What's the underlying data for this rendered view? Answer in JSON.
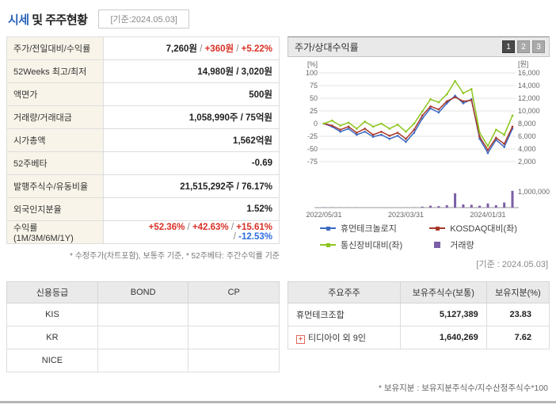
{
  "header": {
    "title_highlight": "시세",
    "title_rest": " 및 주주현황",
    "reference_date": "[기준:2024.05.03]"
  },
  "misc": {
    "sep": " / "
  },
  "quote_table": {
    "rows": [
      {
        "label": "주가/전일대비/수익률",
        "price": "7,260원",
        "change": "+360원",
        "rate": "+5.22%"
      },
      {
        "label": "52Weeks 최고/최저",
        "value": "14,980원 / 3,020원"
      },
      {
        "label": "액면가",
        "value": "500원"
      },
      {
        "label": "거래량/거래대금",
        "value": "1,058,990주 / 75억원"
      },
      {
        "label": "시가총액",
        "value": "1,562억원"
      },
      {
        "label": "52주베타",
        "value": "-0.69"
      },
      {
        "label": "발행주식수/유동비율",
        "value": "21,515,292주 / 76.17%"
      },
      {
        "label": "외국인지분율",
        "value": "1.52%"
      },
      {
        "label": "수익률 (1M/3M/6M/1Y)",
        "r1m": "+52.36%",
        "r3m": "+42.63%",
        "r6m": "+15.61%",
        "r1y": "-12.53%"
      }
    ],
    "footnote": "* 수정주가(차트포함), 보통주 기준, * 52주베타: 주간수익률 기준"
  },
  "chart_panel": {
    "title": "주가/상대수익률",
    "view_buttons": [
      "1",
      "2",
      "3"
    ],
    "active_button": "1",
    "reference_date": "[기준 : 2024.05.03]"
  },
  "chart_data": {
    "type": "line",
    "title": "주가/상대수익률",
    "left_unit": "[%]",
    "right_unit": "[원]",
    "left_ticks": [
      100,
      75,
      50,
      25,
      0,
      -25,
      -50,
      -75
    ],
    "right_ticks": [
      "16,000",
      "14,000",
      "12,000",
      "10,000",
      "8,000",
      "6,000",
      "4,000",
      "2,000"
    ],
    "x_tick_labels": [
      {
        "index": 0,
        "label": "2022/05/31"
      },
      {
        "index": 10,
        "label": "2023/03/31"
      },
      {
        "index": 20,
        "label": "2024/01/31"
      }
    ],
    "series": [
      {
        "name": "휴먼테크놀로지",
        "color": "#3a6bc4",
        "axis": "left",
        "values": [
          0,
          -6,
          -16,
          -10,
          -22,
          -16,
          -26,
          -22,
          -30,
          -24,
          -36,
          -18,
          10,
          30,
          22,
          40,
          55,
          40,
          48,
          -30,
          -58,
          -32,
          -46,
          -10
        ]
      },
      {
        "name": "KOSDAQ대비(좌)",
        "color": "#a8382a",
        "axis": "left",
        "values": [
          0,
          -4,
          -12,
          -6,
          -18,
          -10,
          -22,
          -16,
          -24,
          -18,
          -30,
          -12,
          16,
          34,
          28,
          44,
          52,
          44,
          46,
          -26,
          -52,
          -28,
          -40,
          -6
        ]
      },
      {
        "name": "통신장비대비(좌)",
        "color": "#8cc61d",
        "axis": "left",
        "values": [
          0,
          6,
          -4,
          2,
          -10,
          4,
          -6,
          0,
          -10,
          -2,
          -16,
          0,
          24,
          48,
          42,
          58,
          84,
          60,
          68,
          -18,
          -44,
          -12,
          -22,
          16
        ]
      }
    ],
    "volume": {
      "name": "거래량",
      "color": "#7b5fa8",
      "axis_max": 1000000,
      "axis_label": "1,000,000",
      "values": [
        20000,
        18000,
        15000,
        12000,
        12000,
        10000,
        10000,
        8000,
        8000,
        10000,
        12000,
        18000,
        60000,
        120000,
        90000,
        150000,
        900000,
        200000,
        180000,
        120000,
        260000,
        150000,
        320000,
        1058990
      ]
    }
  },
  "credit_table": {
    "headers": [
      "신용등급",
      "BOND",
      "CP"
    ],
    "rows": [
      [
        "KIS",
        "",
        ""
      ],
      [
        "KR",
        "",
        ""
      ],
      [
        "NICE",
        "",
        ""
      ]
    ]
  },
  "shareholder_table": {
    "headers": [
      "주요주주",
      "보유주식수(보통)",
      "보유지분(%)"
    ],
    "rows": [
      {
        "name": "휴먼테크조합",
        "shares": "5,127,389",
        "stake": "23.83"
      },
      {
        "name": "티디아이 외 9인",
        "icon": "plus-badge",
        "shares": "1,640,269",
        "stake": "7.62"
      }
    ],
    "footnote": "* 보유지분 : 보유지분주식수/지수산정주식수*100"
  }
}
